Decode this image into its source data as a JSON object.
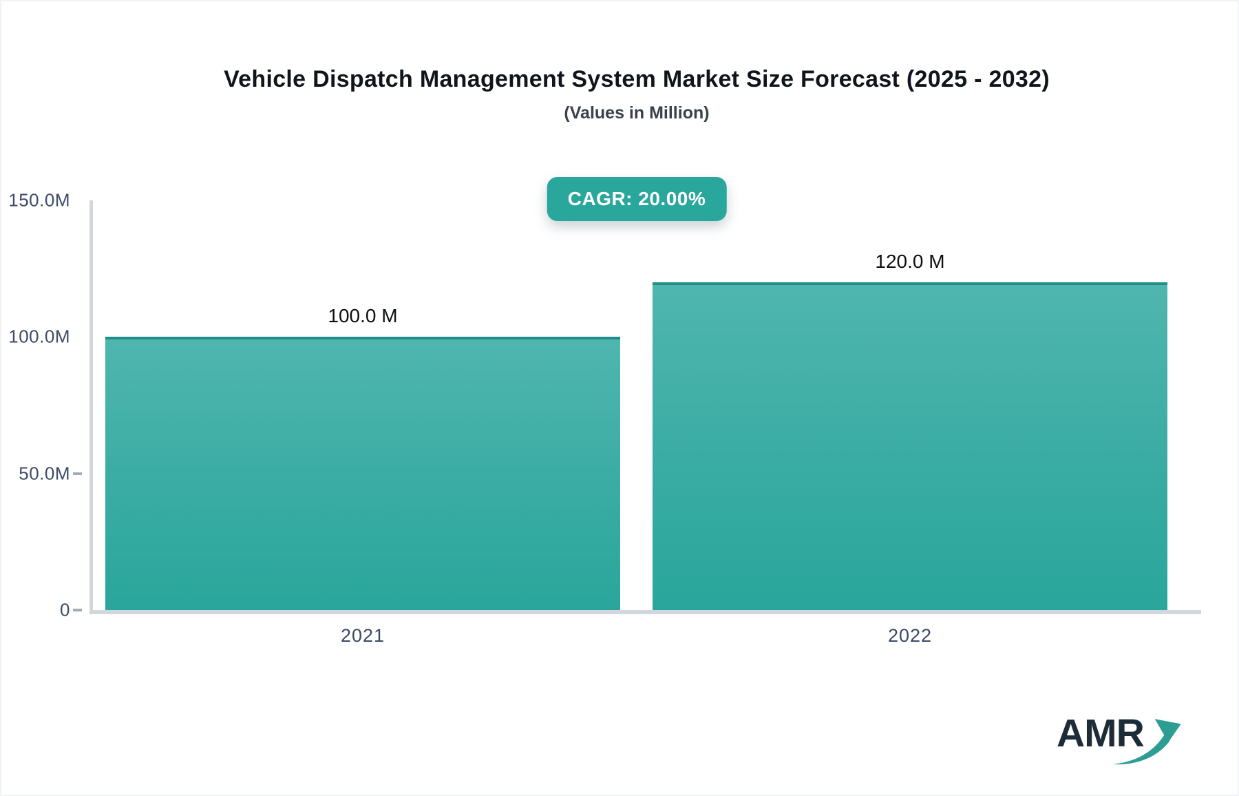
{
  "header": {
    "title": "Vehicle Dispatch Management System Market Size Forecast (2025 - 2032)",
    "subtitle": "(Values in Million)",
    "cagr_badge": "CAGR: 20.00%"
  },
  "chart_data": {
    "type": "bar",
    "title": "Vehicle Dispatch Management System Market Size Forecast (2025 - 2032)",
    "subtitle": "(Values in Million)",
    "unit": "Million",
    "categories": [
      "2021",
      "2022"
    ],
    "values": [
      100.0,
      120.0
    ],
    "value_labels": [
      "100.0 M",
      "120.0 M"
    ],
    "annotations": [
      "CAGR: 20.00%"
    ],
    "ylim": [
      0,
      150
    ],
    "y_ticks": [
      {
        "label": "150.0M",
        "value": 150,
        "mark": false
      },
      {
        "label": "100.0M",
        "value": 100,
        "mark": false
      },
      {
        "label": "50.0M",
        "value": 50,
        "mark": true
      },
      {
        "label": "0",
        "value": 0,
        "mark": true
      }
    ],
    "grid": false,
    "legend": false
  },
  "colors": {
    "accent_teal": "#2aa79d",
    "bar_gradient_top": "#4fb6ae",
    "bar_gradient_bottom": "#29a69b",
    "bar_top_border": "#1f8f88",
    "axis_line": "#d3d6dd",
    "tick_label": "#3d4b63",
    "title_text": "#10151b",
    "badge_text": "#ffffff",
    "logo_navy": "#1e2c38",
    "logo_arrow_teal": "#2d9c93"
  },
  "logo": {
    "text": "AMR"
  }
}
